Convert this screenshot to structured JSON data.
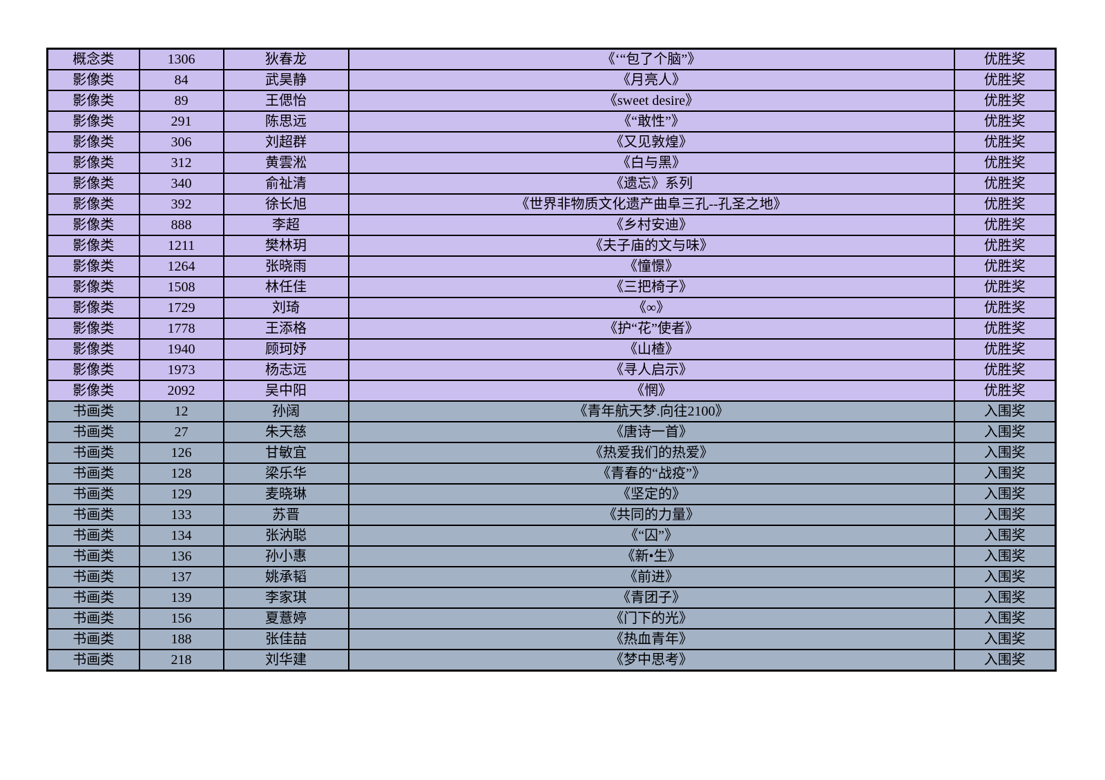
{
  "document": {
    "type": "award-results-table",
    "colors": {
      "winner_row_bg": "#CBBFEF",
      "finalist_row_bg": "#A4B2C6",
      "border": "#000000",
      "text": "#000000",
      "page_bg": "#FFFFFF"
    },
    "columns": [
      {
        "key": "category",
        "name": "category"
      },
      {
        "key": "number",
        "name": "entry-number"
      },
      {
        "key": "name",
        "name": "author-name"
      },
      {
        "key": "title",
        "name": "work-title"
      },
      {
        "key": "award",
        "name": "award"
      }
    ],
    "rows": [
      {
        "category": "概念类",
        "number": "1306",
        "name": "狄春龙",
        "title": "《‘“包了个脑”》",
        "award": "优胜奖",
        "group": "winner"
      },
      {
        "category": "影像类",
        "number": "84",
        "name": "武昊静",
        "title": "《月亮人》",
        "award": "优胜奖",
        "group": "winner"
      },
      {
        "category": "影像类",
        "number": "89",
        "name": "王偲怡",
        "title": "《sweet desire》",
        "award": "优胜奖",
        "group": "winner"
      },
      {
        "category": "影像类",
        "number": "291",
        "name": "陈思远",
        "title": "《“敢性”》",
        "award": "优胜奖",
        "group": "winner"
      },
      {
        "category": "影像类",
        "number": "306",
        "name": "刘超群",
        "title": "《又见敦煌》",
        "award": "优胜奖",
        "group": "winner"
      },
      {
        "category": "影像类",
        "number": "312",
        "name": "黄雲淞",
        "title": "《白与黑》",
        "award": "优胜奖",
        "group": "winner"
      },
      {
        "category": "影像类",
        "number": "340",
        "name": "俞祉清",
        "title": "《遗忘》系列",
        "award": "优胜奖",
        "group": "winner"
      },
      {
        "category": "影像类",
        "number": "392",
        "name": "徐长旭",
        "title": "《世界非物质文化遗产曲阜三孔--孔圣之地》",
        "award": "优胜奖",
        "group": "winner"
      },
      {
        "category": "影像类",
        "number": "888",
        "name": "李超",
        "title": "《乡村安迪》",
        "award": "优胜奖",
        "group": "winner"
      },
      {
        "category": "影像类",
        "number": "1211",
        "name": "樊林玥",
        "title": "《夫子庙的文与味》",
        "award": "优胜奖",
        "group": "winner"
      },
      {
        "category": "影像类",
        "number": "1264",
        "name": "张晓雨",
        "title": "《憧憬》",
        "award": "优胜奖",
        "group": "winner"
      },
      {
        "category": "影像类",
        "number": "1508",
        "name": "林任佳",
        "title": "《三把椅子》",
        "award": "优胜奖",
        "group": "winner"
      },
      {
        "category": "影像类",
        "number": "1729",
        "name": "刘琦",
        "title": "《∞》",
        "award": "优胜奖",
        "group": "winner"
      },
      {
        "category": "影像类",
        "number": "1778",
        "name": "王添格",
        "title": "《护“花”使者》",
        "award": "优胜奖",
        "group": "winner"
      },
      {
        "category": "影像类",
        "number": "1940",
        "name": "顾珂妤",
        "title": "《山楂》",
        "award": "优胜奖",
        "group": "winner"
      },
      {
        "category": "影像类",
        "number": "1973",
        "name": "杨志远",
        "title": "《寻人启示》",
        "award": "优胜奖",
        "group": "winner"
      },
      {
        "category": "影像类",
        "number": "2092",
        "name": "吴中阳",
        "title": "《惘》",
        "award": "优胜奖",
        "group": "winner"
      },
      {
        "category": "书画类",
        "number": "12",
        "name": "孙阔",
        "title": "《青年航天梦.向往2100》",
        "award": "入围奖",
        "group": "finalist"
      },
      {
        "category": "书画类",
        "number": "27",
        "name": "朱天慈",
        "title": "《唐诗一首》",
        "award": "入围奖",
        "group": "finalist"
      },
      {
        "category": "书画类",
        "number": "126",
        "name": "甘敏宜",
        "title": "《热爱我们的热爱》",
        "award": "入围奖",
        "group": "finalist"
      },
      {
        "category": "书画类",
        "number": "128",
        "name": "梁乐华",
        "title": "《青春的“战疫”》",
        "award": "入围奖",
        "group": "finalist"
      },
      {
        "category": "书画类",
        "number": "129",
        "name": "麦晓琳",
        "title": "《坚定的》",
        "award": "入围奖",
        "group": "finalist"
      },
      {
        "category": "书画类",
        "number": "133",
        "name": "苏晋",
        "title": "《共同的力量》",
        "award": "入围奖",
        "group": "finalist"
      },
      {
        "category": "书画类",
        "number": "134",
        "name": "张汭聪",
        "title": "《“囚”》",
        "award": "入围奖",
        "group": "finalist"
      },
      {
        "category": "书画类",
        "number": "136",
        "name": "孙小惠",
        "title": "《新•生》",
        "award": "入围奖",
        "group": "finalist"
      },
      {
        "category": "书画类",
        "number": "137",
        "name": "姚承韬",
        "title": "《前进》",
        "award": "入围奖",
        "group": "finalist"
      },
      {
        "category": "书画类",
        "number": "139",
        "name": "李家琪",
        "title": "《青团子》",
        "award": "入围奖",
        "group": "finalist"
      },
      {
        "category": "书画类",
        "number": "156",
        "name": "夏薏婷",
        "title": "《门下的光》",
        "award": "入围奖",
        "group": "finalist"
      },
      {
        "category": "书画类",
        "number": "188",
        "name": "张佳喆",
        "title": "《热血青年》",
        "award": "入围奖",
        "group": "finalist"
      },
      {
        "category": "书画类",
        "number": "218",
        "name": "刘华建",
        "title": "《梦中思考》",
        "award": "入围奖",
        "group": "finalist"
      }
    ]
  }
}
